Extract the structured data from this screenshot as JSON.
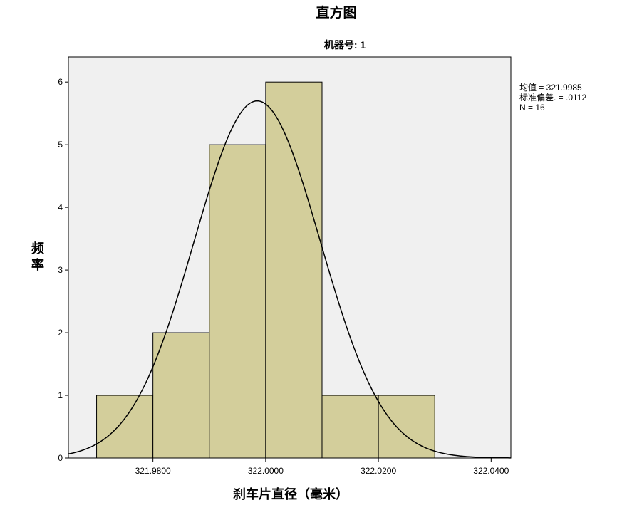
{
  "chart_data": {
    "type": "bar",
    "title": "直方图",
    "subtitle": "机器号: 1",
    "xlabel": "刹车片直径（毫米）",
    "ylabel": "频率",
    "ylabel_chars": [
      "频",
      "率"
    ],
    "xlim": [
      321.965,
      322.0435
    ],
    "ylim": [
      0,
      6.4
    ],
    "bin_edges": [
      321.97,
      321.98,
      321.99,
      322.0,
      322.01,
      322.02,
      322.03
    ],
    "values": [
      1,
      2,
      5,
      6,
      1,
      1
    ],
    "x_ticks": [
      {
        "value": 321.98,
        "label": "321.9800"
      },
      {
        "value": 322.0,
        "label": "322.0000"
      },
      {
        "value": 322.02,
        "label": "322.0200"
      },
      {
        "value": 322.04,
        "label": "322.0400"
      }
    ],
    "y_ticks": [
      {
        "value": 0,
        "label": "0"
      },
      {
        "value": 1,
        "label": "1"
      },
      {
        "value": 2,
        "label": "2"
      },
      {
        "value": 3,
        "label": "3"
      },
      {
        "value": 4,
        "label": "4"
      },
      {
        "value": 5,
        "label": "5"
      },
      {
        "value": 6,
        "label": "6"
      }
    ],
    "normal_curve": {
      "mean": 321.9985,
      "sd": 0.0112,
      "n": 16,
      "bin_width": 0.01
    },
    "stats_legend": [
      "均值 = 321.9985",
      "标准偏差. = .0112",
      "N = 16"
    ],
    "legend_placement": "right",
    "grid": false,
    "colors": {
      "bar_fill": "#d3ce9b",
      "bar_stroke": "#000000",
      "plot_background": "#f0f0f0",
      "curve": "#000000"
    }
  }
}
